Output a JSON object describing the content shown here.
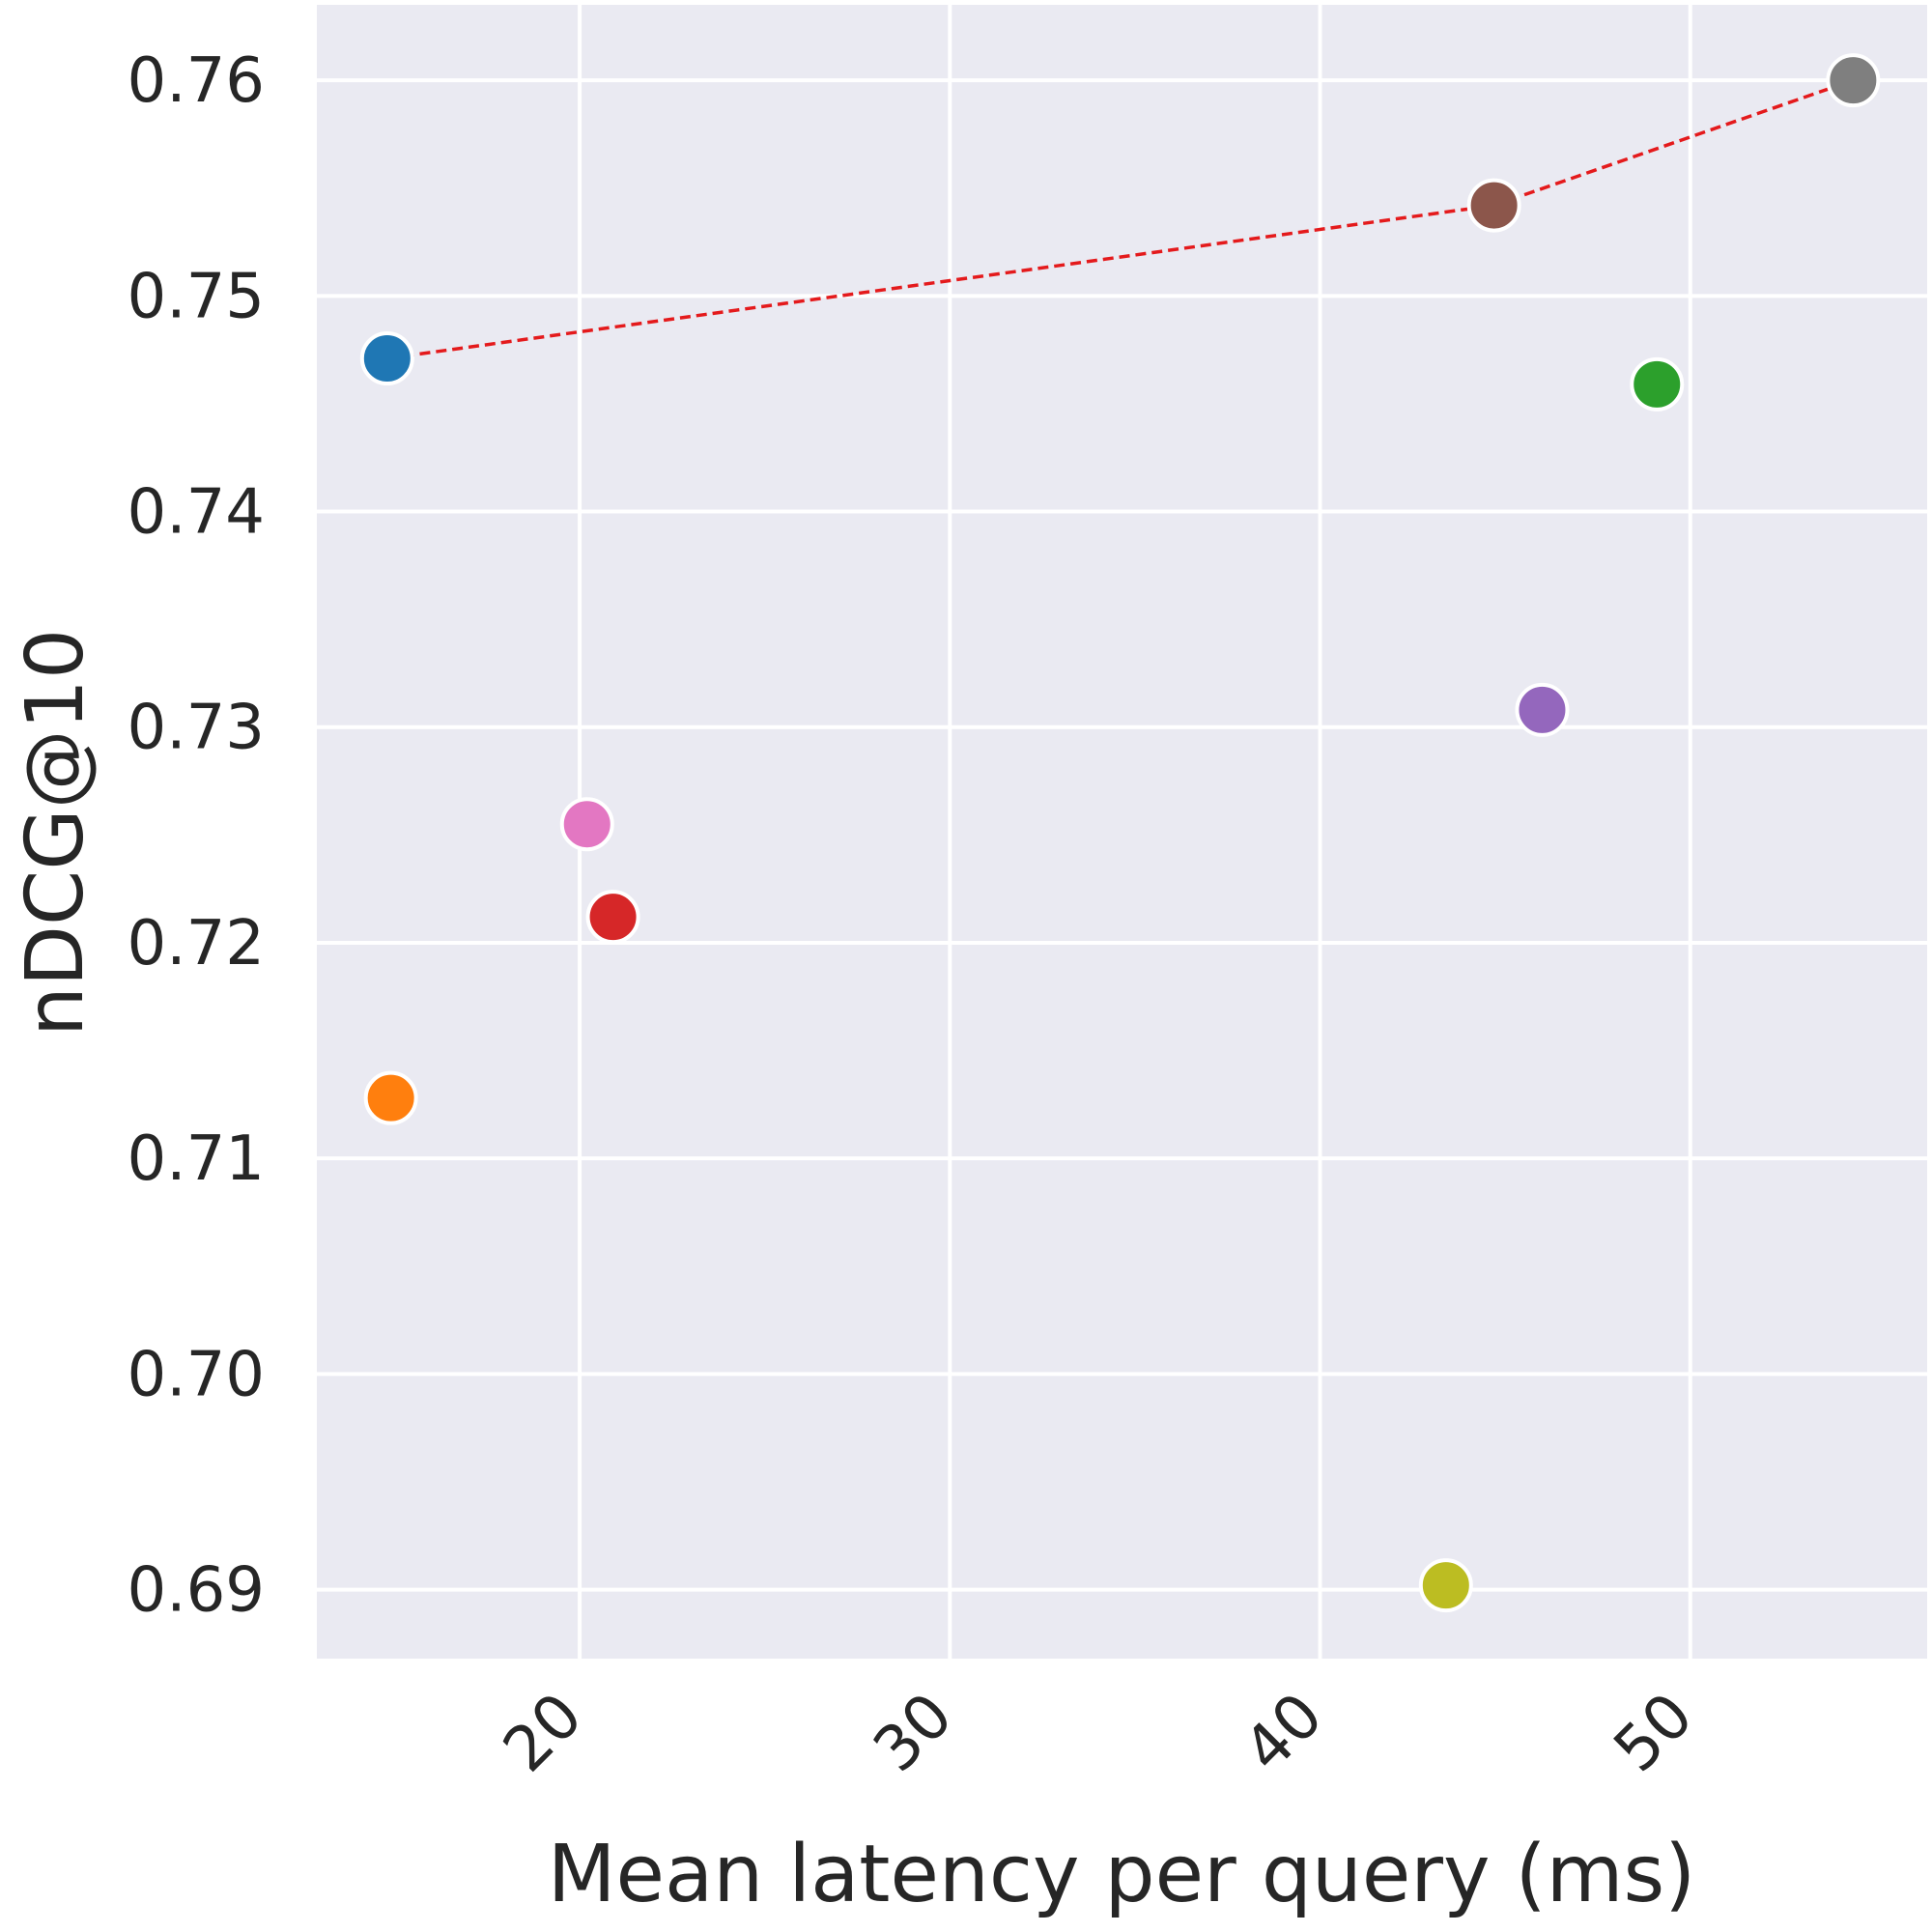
{
  "chart_data": {
    "type": "scatter",
    "title": "",
    "xlabel": "Mean latency per query (ms)",
    "ylabel": "nDCG@10",
    "xlim": [
      12.9,
      56.4
    ],
    "ylim": [
      0.6868,
      0.7635
    ],
    "xticks": [
      20,
      30,
      40,
      50
    ],
    "xtick_labels": [
      "20",
      "30",
      "40",
      "50"
    ],
    "yticks": [
      0.69,
      0.7,
      0.71,
      0.72,
      0.73,
      0.74,
      0.75,
      0.76
    ],
    "ytick_labels": [
      "0.69",
      "0.70",
      "0.71",
      "0.72",
      "0.73",
      "0.74",
      "0.75",
      "0.76"
    ],
    "grid": true,
    "background": "#eaeaf2",
    "points": [
      {
        "x": 14.8,
        "y": 0.7471,
        "color": "#1f77b4"
      },
      {
        "x": 14.9,
        "y": 0.7128,
        "color": "#ff7f0e"
      },
      {
        "x": 49.1,
        "y": 0.7459,
        "color": "#2ca02c"
      },
      {
        "x": 20.9,
        "y": 0.7212,
        "color": "#d62728"
      },
      {
        "x": 46.0,
        "y": 0.7308,
        "color": "#9467bd"
      },
      {
        "x": 44.7,
        "y": 0.7542,
        "color": "#8c564b"
      },
      {
        "x": 20.2,
        "y": 0.7255,
        "color": "#e377c2"
      },
      {
        "x": 54.4,
        "y": 0.76,
        "color": "#7f7f7f"
      },
      {
        "x": 43.4,
        "y": 0.6902,
        "color": "#bcbd22"
      }
    ],
    "pareto_front": {
      "x": [
        14.8,
        44.7,
        54.4
      ],
      "y": [
        0.7471,
        0.7542,
        0.76
      ],
      "color": "#e41a1c",
      "style": "dashed"
    }
  }
}
